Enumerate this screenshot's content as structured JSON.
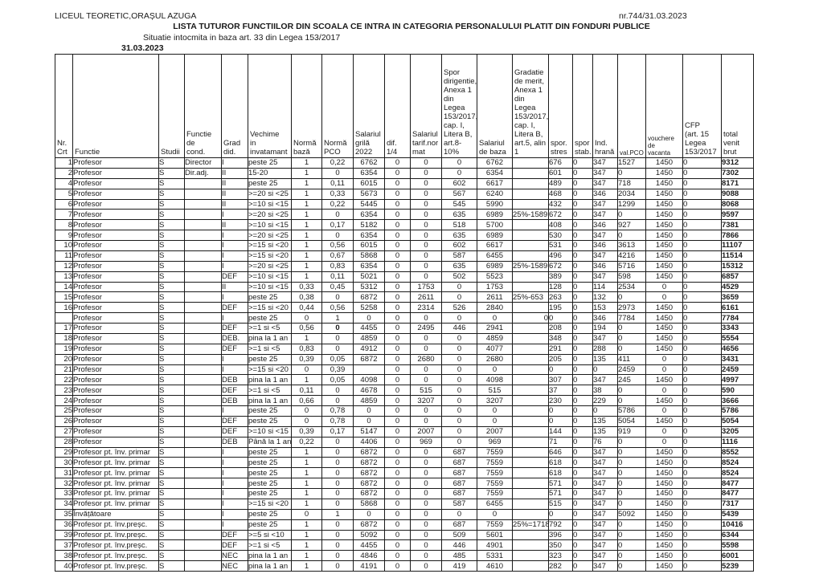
{
  "page": {
    "org": "LICEUL TEORETIC,ORAȘUL AZUGA",
    "doc_number": "nr.744/31.03.2023",
    "title": "LISTA TUTUROR FUNCTIILOR DIN SCOALA CE INTRA IN CATEGORIA PERSONALULUI PLATIT DIN FONDURI PUBLICE",
    "subtitle": "Situatie intocmita in baza art. 33 din Legea 153/2017",
    "date": "31.03.2023"
  },
  "table": {
    "columns": [
      "Nr.\nCrt",
      "Functie",
      "Studii",
      "Functie de\ncond.",
      "Grad\ndid.",
      "Vechime\nin\ninvatamant",
      "Normă\nbază",
      "Normă\nPCO",
      "Salariul\ngrilă\n2022",
      "dif.\n1/4",
      "Salariul\ntarif.nor\nmat",
      "Spor\ndirigentie,\nAnexa 1\ndin Legea\n153/2017,\ncap. I,\nLitera B,\nart.8-10%",
      "Salariul\nde baza",
      "Gradatie\nde merit,\nAnexa 1\ndin Legea\n153/2017,\ncap. I,\nLitera B,\nart.5, alin\n1",
      "spor.\nstres",
      "spor\nstab.",
      "Ind.\nhrană",
      "val.PCO",
      "vouchere de\nvacanta",
      "CFP\n(art. 15\nLegea\n153/2017",
      "total\nvenit\nbrut"
    ],
    "rows": [
      [
        "1",
        "Profesor",
        "S",
        "Director",
        "I",
        "peste 25",
        "1",
        "0,22",
        "6762",
        "0",
        "0",
        "0",
        "6762",
        "",
        "676",
        "0",
        "347",
        "1527",
        "1450",
        "0",
        "9312"
      ],
      [
        "2",
        "Profesor",
        "S",
        "Dir.adj.",
        "II",
        "15-20",
        "1",
        "0",
        "6354",
        "0",
        "0",
        "0",
        "6354",
        "",
        "601",
        "0",
        "347",
        "0",
        "1450",
        "0",
        "7302"
      ],
      [
        "4",
        "Profesor",
        "S",
        "",
        "II",
        "peste 25",
        "1",
        "0,11",
        "6015",
        "0",
        "0",
        "602",
        "6617",
        "",
        "489",
        "0",
        "347",
        "718",
        "1450",
        "0",
        "8171"
      ],
      [
        "5",
        "Profesor",
        "S",
        "",
        "II",
        ">=20 si <25",
        "1",
        "0,33",
        "5673",
        "0",
        "0",
        "567",
        "6240",
        "",
        "468",
        "0",
        "346",
        "2034",
        "1450",
        "0",
        "9088"
      ],
      [
        "6",
        "Profesor",
        "S",
        "",
        "II",
        ">=10 si <15",
        "1",
        "0,22",
        "5445",
        "0",
        "0",
        "545",
        "5990",
        "",
        "432",
        "0",
        "347",
        "1299",
        "1450",
        "0",
        "8068"
      ],
      [
        "7",
        "Profesor",
        "S",
        "",
        "I",
        ">=20 si <25",
        "1",
        "0",
        "6354",
        "0",
        "0",
        "635",
        "6989",
        "25%-1589",
        "672",
        "0",
        "347",
        "0",
        "1450",
        "0",
        "9597"
      ],
      [
        "8",
        "Profesor",
        "S",
        "",
        "II",
        ">=10 si <15",
        "1",
        "0,17",
        "5182",
        "0",
        "0",
        "518",
        "5700",
        "",
        "408",
        "0",
        "346",
        "927",
        "1450",
        "0",
        "7381"
      ],
      [
        "9",
        "Profesor",
        "S",
        "",
        "I",
        ">=20 si <25",
        "1",
        "0",
        "6354",
        "0",
        "0",
        "635",
        "6989",
        "",
        "530",
        "0",
        "347",
        "0",
        "1450",
        "0",
        "7866"
      ],
      [
        "10",
        "Profesor",
        "S",
        "",
        "I",
        ">=15 si <20",
        "1",
        "0,56",
        "6015",
        "0",
        "0",
        "602",
        "6617",
        "",
        "531",
        "0",
        "346",
        "3613",
        "1450",
        "0",
        "11107"
      ],
      [
        "11",
        "Profesor",
        "S",
        "",
        "I",
        ">=15 si <20",
        "1",
        "0,67",
        "5868",
        "0",
        "0",
        "587",
        "6455",
        "",
        "496",
        "0",
        "347",
        "4216",
        "1450",
        "0",
        "11514"
      ],
      [
        "12",
        "Profesor",
        "S",
        "",
        "I",
        ">=20 si <25",
        "1",
        "0,83",
        "6354",
        "0",
        "0",
        "635",
        "6989",
        "25%-1589",
        "672",
        "0",
        "346",
        "5716",
        "1450",
        "0",
        "15312"
      ],
      [
        "13",
        "Profesor",
        "S",
        "",
        "DEF",
        ">=10 si <15",
        "1",
        "0,11",
        "5021",
        "0",
        "0",
        "502",
        "5523",
        "",
        "389",
        "0",
        "347",
        "598",
        "1450",
        "0",
        "6857"
      ],
      [
        "14",
        "Profesor",
        "S",
        "",
        "II",
        ">=10 si <15",
        "0,33",
        "0,45",
        "5312",
        "0",
        "1753",
        "0",
        "1753",
        "",
        "128",
        "0",
        "114",
        "2534",
        "0",
        "0",
        "4529"
      ],
      [
        "15",
        "Profesor",
        "S",
        "",
        "I",
        "peste 25",
        "0,38",
        "0",
        "6872",
        "0",
        "2611",
        "0",
        "2611",
        "25%-653",
        "263",
        "0",
        "132",
        "0",
        "0",
        "0",
        "3659"
      ],
      [
        "16",
        "Profesor",
        "S",
        "",
        "DEF",
        ">=15 si <20",
        "0,44",
        "0,56",
        "5258",
        "0",
        "2314",
        "526",
        "2840",
        "",
        "195",
        "0",
        "153",
        "2973",
        "1450",
        "0",
        "6161"
      ],
      [
        "",
        "Profesor",
        "S",
        "",
        "I",
        "peste 25",
        "0",
        "1",
        "0",
        "0",
        "0",
        "0",
        "0",
        "0",
        "0",
        "0",
        "346",
        "7784",
        "1450",
        "0",
        "7784"
      ],
      [
        "17",
        "Profesor",
        "S",
        "",
        "DEF",
        ">=1 si <5",
        "0,56",
        "0",
        "4455",
        "0",
        "2495",
        "446",
        "2941",
        "",
        "208",
        "0",
        "194",
        "0",
        "1450",
        "0",
        "3343"
      ],
      [
        "18",
        "Profesor",
        "S",
        "",
        "DEB.",
        "pina la 1 an",
        "1",
        "0",
        "4859",
        "0",
        "0",
        "0",
        "4859",
        "",
        "348",
        "0",
        "347",
        "0",
        "1450",
        "0",
        "5554"
      ],
      [
        "19",
        "Profesor",
        "S",
        "",
        "DEF",
        ">=1 si <5",
        "0,83",
        "0",
        "4912",
        "0",
        "0",
        "0",
        "4077",
        "",
        "291",
        "0",
        "288",
        "0",
        "1450",
        "0",
        "4656"
      ],
      [
        "20",
        "Profesor",
        "S",
        "",
        "I",
        "peste 25",
        "0,39",
        "0,05",
        "6872",
        "0",
        "2680",
        "0",
        "2680",
        "",
        "205",
        "0",
        "135",
        "411",
        "0",
        "0",
        "3431"
      ],
      [
        "21",
        "Profesor",
        "S",
        "",
        "I",
        ">=15 si <20",
        "0",
        "0,39",
        "",
        "0",
        "0",
        "0",
        "0",
        "",
        "0",
        "0",
        "0",
        "2459",
        "0",
        "0",
        "2459"
      ],
      [
        "22",
        "Profesor",
        "S",
        "",
        "DEB",
        "pina la 1 an",
        "1",
        "0,05",
        "4098",
        "0",
        "0",
        "0",
        "4098",
        "",
        "307",
        "0",
        "347",
        "245",
        "1450",
        "0",
        "4997"
      ],
      [
        "23",
        "Profesor",
        "S",
        "",
        "DEF",
        ">=1 si <5",
        "0,11",
        "0",
        "4678",
        "0",
        "515",
        "0",
        "515",
        "",
        "37",
        "0",
        "38",
        "0",
        "0",
        "0",
        "590"
      ],
      [
        "24",
        "Profesor",
        "S",
        "",
        "DEB",
        "pina la 1 an",
        "0,66",
        "0",
        "4859",
        "0",
        "3207",
        "0",
        "3207",
        "",
        "230",
        "0",
        "229",
        "0",
        "1450",
        "0",
        "3666"
      ],
      [
        "25",
        "Profesor",
        "S",
        "",
        "I",
        "peste 25",
        "0",
        "0,78",
        "0",
        "0",
        "0",
        "0",
        "0",
        "",
        "0",
        "0",
        "0",
        "5786",
        "0",
        "0",
        "5786"
      ],
      [
        "26",
        "Profesor",
        "S",
        "",
        "DEF",
        "peste 25",
        "0",
        "0,78",
        "0",
        "0",
        "0",
        "0",
        "0",
        "",
        "0",
        "0",
        "135",
        "5054",
        "1450",
        "0",
        "5054"
      ],
      [
        "27",
        "Profesor",
        "S",
        "",
        "DEF",
        ">=10 si <15",
        "0,39",
        "0,17",
        "5147",
        "0",
        "2007",
        "0",
        "2007",
        "",
        "144",
        "0",
        "135",
        "919",
        "0",
        "0",
        "3205"
      ],
      [
        "28",
        "Profesor",
        "S",
        "",
        "DEB",
        "Până la 1 an",
        "0,22",
        "0",
        "4406",
        "0",
        "969",
        "0",
        "969",
        "",
        "71",
        "0",
        "76",
        "0",
        "0",
        "0",
        "1116"
      ],
      [
        "29",
        "Profesor pt. înv. primar",
        "S",
        "",
        "I",
        "peste 25",
        "1",
        "0",
        "6872",
        "0",
        "0",
        "687",
        "7559",
        "",
        "646",
        "0",
        "347",
        "0",
        "1450",
        "0",
        "8552"
      ],
      [
        "30",
        "Profesor pt. înv. primar",
        "S",
        "",
        "I",
        "peste 25",
        "1",
        "0",
        "6872",
        "0",
        "0",
        "687",
        "7559",
        "",
        "618",
        "0",
        "347",
        "0",
        "1450",
        "0",
        "8524"
      ],
      [
        "31",
        "Profesor pt. înv. primar",
        "S",
        "",
        "I",
        "peste 25",
        "1",
        "0",
        "6872",
        "0",
        "0",
        "687",
        "7559",
        "",
        "618",
        "0",
        "347",
        "0",
        "1450",
        "0",
        "8524"
      ],
      [
        "32",
        "Profesor pt. înv. primar",
        "S",
        "",
        "I",
        "peste 25",
        "1",
        "0",
        "6872",
        "0",
        "0",
        "687",
        "7559",
        "",
        "571",
        "0",
        "347",
        "0",
        "1450",
        "0",
        "8477"
      ],
      [
        "33",
        "Profesor pt. înv. primar",
        "S",
        "",
        "I",
        "peste 25",
        "1",
        "0",
        "6872",
        "0",
        "0",
        "687",
        "7559",
        "",
        "571",
        "0",
        "347",
        "0",
        "1450",
        "0",
        "8477"
      ],
      [
        "34",
        "Profesor pt. înv. primar",
        "S",
        "",
        "I",
        ">=15 si <20",
        "1",
        "0",
        "5868",
        "0",
        "0",
        "587",
        "6455",
        "",
        "515",
        "0",
        "347",
        "0",
        "1450",
        "0",
        "7317"
      ],
      [
        "35",
        "Învățătoare",
        "S",
        "",
        "I",
        "peste 25",
        "0",
        "1",
        "0",
        "0",
        "0",
        "0",
        "0",
        "",
        "0",
        "0",
        "347",
        "5092",
        "1450",
        "0",
        "5439"
      ],
      [
        "36",
        "Profesor pt. înv.preșc.",
        "S",
        "",
        "I",
        "peste 25",
        "1",
        "0",
        "6872",
        "0",
        "0",
        "687",
        "7559",
        "25%=1718",
        "792",
        "0",
        "347",
        "0",
        "1450",
        "0",
        "10416"
      ],
      [
        "39",
        "Profesor pt. înv.preșc.",
        "S",
        "",
        "DEF",
        ">=5 si <10",
        "1",
        "0",
        "5092",
        "0",
        "0",
        "509",
        "5601",
        "",
        "396",
        "0",
        "347",
        "0",
        "1450",
        "0",
        "6344"
      ],
      [
        "37",
        "Profesor pt. înv.preșc.",
        "S",
        "",
        "DEF",
        ">=1 si <5",
        "1",
        "0",
        "4455",
        "0",
        "0",
        "446",
        "4901",
        "",
        "350",
        "0",
        "347",
        "0",
        "1450",
        "0",
        "5598"
      ],
      [
        "38",
        "Profesor pt. înv.preșc.",
        "S",
        "",
        "NEC",
        "pina la 1 an",
        "1",
        "0",
        "4846",
        "0",
        "0",
        "485",
        "5331",
        "",
        "323",
        "0",
        "347",
        "0",
        "1450",
        "0",
        "6001"
      ],
      [
        "40",
        "Profesor pt. înv.preșc.",
        "S",
        "",
        "NEC",
        "pina la 1 an",
        "1",
        "0",
        "4191",
        "0",
        "0",
        "419",
        "4610",
        "",
        "282",
        "0",
        "347",
        "0",
        "1450",
        "0",
        "5239"
      ]
    ]
  }
}
